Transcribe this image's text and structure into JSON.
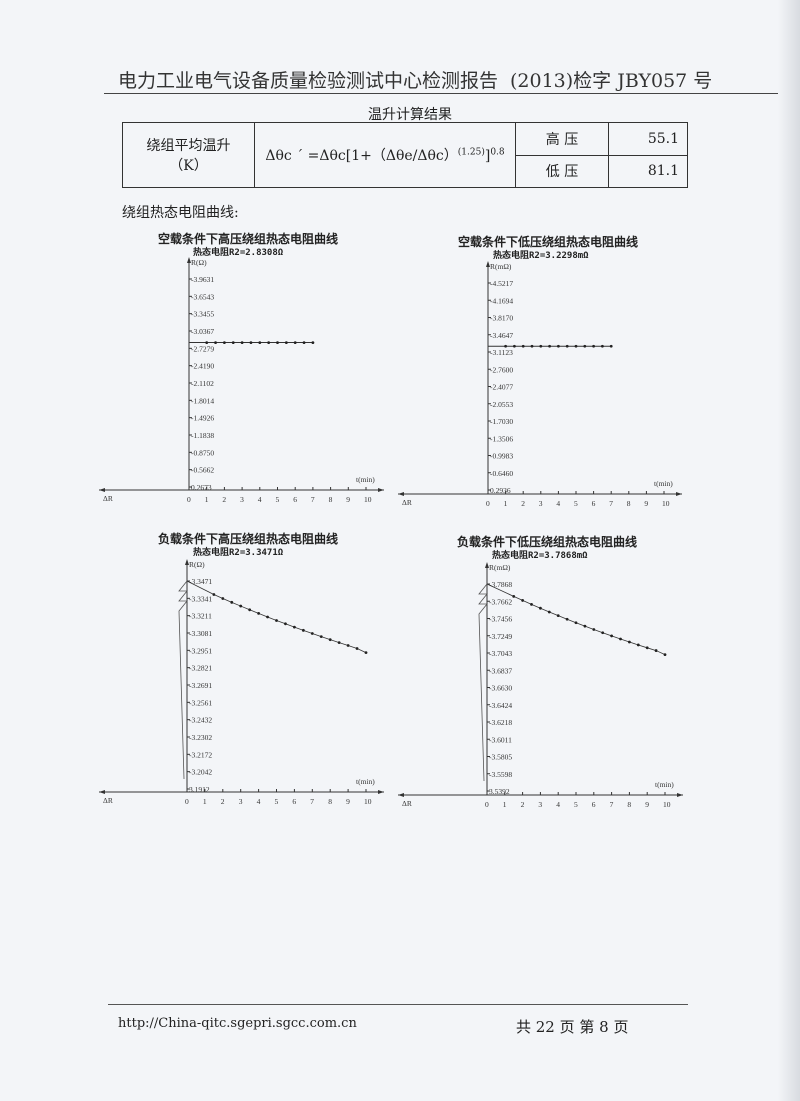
{
  "header": {
    "title": "电力工业电气设备质量检验测试中心检测报告",
    "report_no": "(2013)检字 JBY057 号"
  },
  "result_table": {
    "title": "温升计算结果",
    "row_label": "绕组平均温升（K）",
    "formula": "Δθc ´ =Δθc[1+（Δθe/Δθc）",
    "formula_exp1": "(1.25)",
    "formula_close": "]",
    "formula_exp2": "0.8",
    "rows": [
      {
        "side": "高 压",
        "value": "55.1"
      },
      {
        "side": "低 压",
        "value": "81.1"
      }
    ]
  },
  "section_label": "绕组热态电阻曲线:",
  "chart_data": [
    {
      "type": "line",
      "title": "空载条件下高压绕组热态电阻曲线",
      "subtitle": "热态电阻R2=2.8308Ω",
      "ylabel": "R(Ω)",
      "xlabel": "t(min)",
      "neg_label": "ΔR",
      "x_ticks": [
        "0",
        "1",
        "2",
        "3",
        "4",
        "5",
        "6",
        "7",
        "8",
        "9",
        "10"
      ],
      "y_ticks": [
        "0.2673",
        "0.5662",
        "0.8750",
        "1.1838",
        "1.4926",
        "1.8014",
        "2.1102",
        "2.4190",
        "2.7279",
        "3.0367",
        "3.3455",
        "3.6543",
        "3.9631"
      ],
      "ylim": [
        0.2673,
        3.9631
      ],
      "xlim": [
        0,
        10
      ],
      "reference": 2.8308,
      "x": [
        1,
        1.5,
        2,
        2.5,
        3,
        3.5,
        4,
        4.5,
        5,
        5.5,
        6,
        6.5,
        7
      ],
      "y": [
        2.83,
        2.83,
        2.83,
        2.83,
        2.83,
        2.83,
        2.83,
        2.83,
        2.83,
        2.83,
        2.83,
        2.83,
        2.83
      ]
    },
    {
      "type": "line",
      "title": "空载条件下低压绕组热态电阻曲线",
      "subtitle": "热态电阻R2=3.2298mΩ",
      "ylabel": "R(mΩ)",
      "xlabel": "t(min)",
      "neg_label": "ΔR",
      "x_ticks": [
        "0",
        "1",
        "2",
        "3",
        "4",
        "5",
        "6",
        "7",
        "8",
        "9",
        "10"
      ],
      "y_ticks": [
        "0.2936",
        "0.6460",
        "0.9983",
        "1.3506",
        "1.7030",
        "2.0553",
        "2.4077",
        "2.7600",
        "3.1123",
        "3.4647",
        "3.8170",
        "4.1694",
        "4.5217"
      ],
      "ylim": [
        0.2936,
        4.5217
      ],
      "xlim": [
        0,
        10
      ],
      "reference": 3.2298,
      "x": [
        1,
        1.5,
        2,
        2.5,
        3,
        3.5,
        4,
        4.5,
        5,
        5.5,
        6,
        6.5,
        7
      ],
      "y": [
        3.23,
        3.23,
        3.23,
        3.23,
        3.23,
        3.23,
        3.23,
        3.23,
        3.23,
        3.23,
        3.23,
        3.23,
        3.23
      ]
    },
    {
      "type": "line",
      "title": "负载条件下高压绕组热态电阻曲线",
      "subtitle": "热态电阻R2=3.3471Ω",
      "ylabel": "R(Ω)",
      "xlabel": "t(min)",
      "neg_label": "ΔR",
      "x_ticks": [
        "0",
        "1",
        "2",
        "3",
        "4",
        "5",
        "6",
        "7",
        "8",
        "9",
        "10"
      ],
      "y_ticks": [
        "3.1912",
        "3.2042",
        "3.2172",
        "3.2302",
        "3.2432",
        "3.2561",
        "3.2691",
        "3.2821",
        "3.2951",
        "3.3081",
        "3.3211",
        "3.3341",
        "3.3471"
      ],
      "ylim": [
        3.1912,
        3.3471
      ],
      "xlim": [
        0,
        10
      ],
      "reference": 3.3471,
      "x": [
        1.5,
        2,
        2.5,
        3,
        3.5,
        4,
        4.5,
        5,
        5.5,
        6,
        6.5,
        7,
        7.5,
        8,
        8.5,
        9,
        9.5,
        10
      ],
      "y": [
        3.337,
        3.334,
        3.3311,
        3.3283,
        3.3255,
        3.3228,
        3.3201,
        3.3175,
        3.315,
        3.3125,
        3.3101,
        3.3077,
        3.3054,
        3.3031,
        3.3009,
        3.2987,
        3.2965,
        3.2934
      ]
    },
    {
      "type": "line",
      "title": "负载条件下低压绕组热态电阻曲线",
      "subtitle": "热态电阻R2=3.7868mΩ",
      "ylabel": "R(mΩ)",
      "xlabel": "t(min)",
      "neg_label": "ΔR",
      "x_ticks": [
        "0",
        "1",
        "2",
        "3",
        "4",
        "5",
        "6",
        "7",
        "8",
        "9",
        "10"
      ],
      "y_ticks": [
        "3.5392",
        "3.5598",
        "3.5805",
        "3.6011",
        "3.6218",
        "3.6424",
        "3.6630",
        "3.6837",
        "3.7043",
        "3.7249",
        "3.7456",
        "3.7662",
        "3.7868"
      ],
      "ylim": [
        3.5392,
        3.7868
      ],
      "xlim": [
        0,
        10
      ],
      "reference": 3.7868,
      "x": [
        1.5,
        2,
        2.5,
        3,
        3.5,
        4,
        4.5,
        5,
        5.5,
        6,
        6.5,
        7,
        7.5,
        8,
        8.5,
        9,
        9.5,
        10
      ],
      "y": [
        3.772,
        3.7672,
        3.7625,
        3.7579,
        3.7534,
        3.749,
        3.7447,
        3.7405,
        3.7364,
        3.7324,
        3.7285,
        3.7247,
        3.721,
        3.7174,
        3.7139,
        3.7105,
        3.7072,
        3.7024
      ]
    }
  ],
  "footer": {
    "url": "http://China-qitc.sgepri.sgcc.com.cn",
    "pages": "共 22 页 第 8 页"
  }
}
